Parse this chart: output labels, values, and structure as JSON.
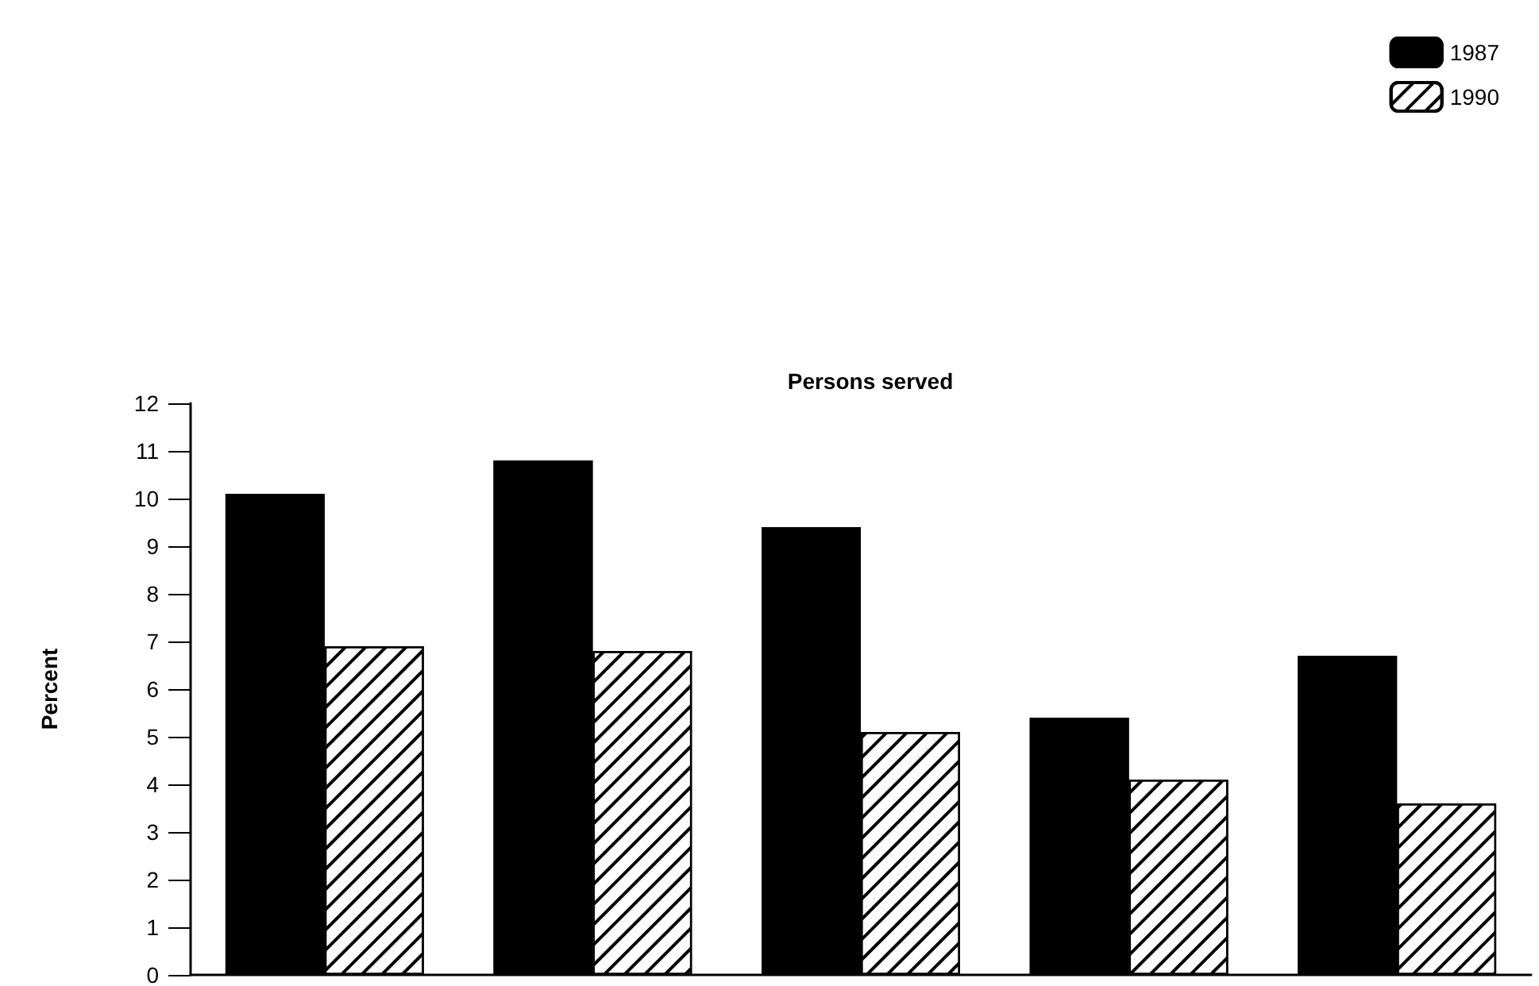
{
  "chart_data": {
    "type": "bar",
    "title": "Persons served",
    "ylabel": "Percent",
    "categories": [
      null,
      null,
      null,
      null,
      null
    ],
    "series": [
      {
        "name": "1987",
        "color": "#000000",
        "values": [
          10.1,
          10.8,
          9.4,
          5.4,
          6.7
        ]
      },
      {
        "name": "1990",
        "color": "#ffffff",
        "values": [
          6.9,
          6.8,
          5.1,
          4.1,
          3.6
        ]
      }
    ],
    "ylim": [
      0,
      12
    ],
    "yticks": [
      0,
      1,
      2,
      3,
      4,
      5,
      6,
      7,
      8,
      9,
      10,
      11,
      12
    ],
    "grid": false,
    "legend": "top right",
    "tick_labels": "y"
  }
}
